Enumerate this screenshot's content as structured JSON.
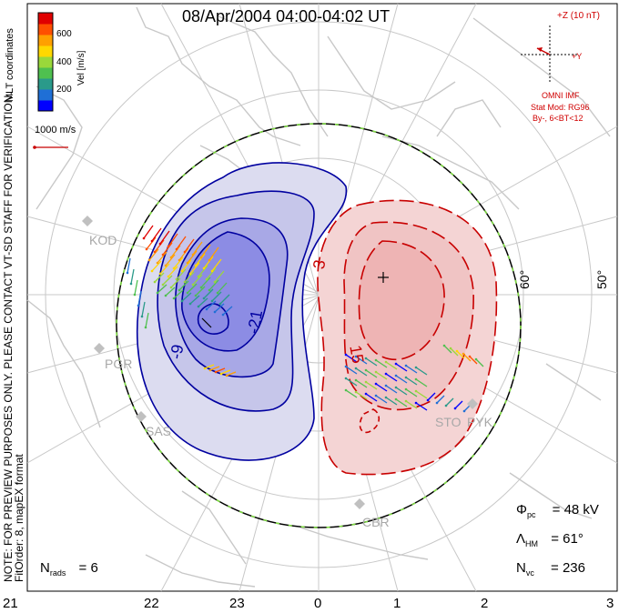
{
  "title": "08/Apr/2004 04:00-04:02 UT",
  "colorbar": {
    "label": "Vel [m/s]",
    "ticks": [
      "600",
      "400",
      "200"
    ],
    "colors": [
      "#0000ff",
      "#1f6fd6",
      "#2a9a8a",
      "#4fc04f",
      "#9ad83a",
      "#ffd800",
      "#ffa000",
      "#ff5000",
      "#e00000"
    ]
  },
  "coord_label": "MLT coordinates",
  "scale_vector": "1000 m/s",
  "side_note": "NOTE: FOR PREVIEW PURPOSES ONLY. PLEASE CONTACT VT-SD STAFF FOR VERIFICATION.",
  "fit_note": "FitOrder: 8, mapEX format",
  "imf": {
    "z_label": "+Z (10 nT)",
    "y_label": "+Y",
    "source": "OMNI IMF",
    "model": "Stat Mod: RG96",
    "condition": "By-, 6<BT<12"
  },
  "latitude_labels": [
    "60°",
    "50°"
  ],
  "mlt_labels": [
    "21",
    "22",
    "23",
    "0",
    "1",
    "2",
    "3"
  ],
  "stations": [
    "KOD",
    "PGR",
    "SAS",
    "STO",
    "PYK",
    "CBR"
  ],
  "contour_labels": {
    "neg_outer": "-9",
    "neg_inner": "-21",
    "pos_outer": "3",
    "pos_inner": "15"
  },
  "stats": {
    "phi_pc": "Φ",
    "phi_sub": "pc",
    "phi_value": "= 48 kV",
    "lambda": "Λ",
    "lambda_sub": "HM",
    "lambda_value": "= 61°",
    "nvc": "N",
    "nvc_sub": "vc",
    "nvc_value": "= 236",
    "nrads": "N",
    "nrads_sub": "rads",
    "nrads_value": "= 6"
  },
  "colors": {
    "negative": "#0000a0",
    "positive": "#c80000",
    "map": "#c8c8c8"
  }
}
